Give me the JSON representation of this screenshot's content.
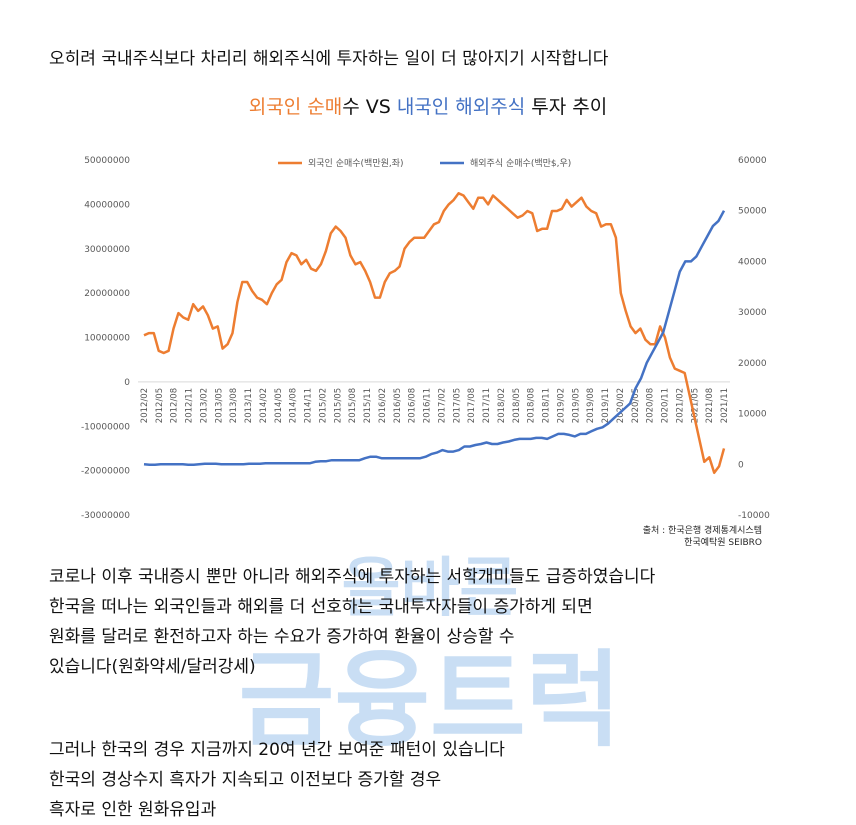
{
  "intro": "오히려 국내주식보다 차리리 해외주식에 투자하는 일이 더 많아지기 시작합니다",
  "title": {
    "part1": "외국인 순매",
    "part2": "수 VS ",
    "part3": "내국인 해외주식",
    "part4": " 투자 추이",
    "color_orange": "#ed7d31",
    "color_blue": "#4472c4"
  },
  "chart_data": {
    "type": "line",
    "legend": [
      "외국인 순매수(백만원,좌)",
      "해외주식 순매수(백만$,우)"
    ],
    "legend_position": "top-center",
    "grid": false,
    "left_axis": {
      "ticks": [
        "50000000",
        "40000000",
        "30000000",
        "20000000",
        "10000000",
        "0",
        "-10000000",
        "-20000000",
        "-30000000"
      ],
      "range": [
        -30000000,
        50000000
      ]
    },
    "right_axis": {
      "ticks": [
        "60000",
        "50000",
        "40000",
        "30000",
        "20000",
        "10000",
        "0",
        "-10000"
      ],
      "range": [
        -10000,
        60000
      ]
    },
    "x_labels": [
      "2012/02",
      "2012/05",
      "2012/08",
      "2012/11",
      "2013/02",
      "2013/05",
      "2013/08",
      "2013/11",
      "2014/02",
      "2014/05",
      "2014/08",
      "2014/11",
      "2015/02",
      "2015/05",
      "2015/08",
      "2015/11",
      "2016/02",
      "2016/05",
      "2016/08",
      "2016/11",
      "2017/02",
      "2017/05",
      "2017/08",
      "2017/11",
      "2018/02",
      "2018/05",
      "2018/08",
      "2018/11",
      "2019/02",
      "2019/05",
      "2019/08",
      "2019/11",
      "2020/02",
      "2020/05",
      "2020/08",
      "2020/11",
      "2021/02",
      "2021/05",
      "2021/08",
      "2021/11"
    ],
    "series": [
      {
        "name": "외국인 순매수(백만원,좌)",
        "color": "#ed7d31",
        "axis": "left",
        "values": [
          10500000,
          11000000,
          11000000,
          7000000,
          6500000,
          7000000,
          12000000,
          15500000,
          14500000,
          14000000,
          17500000,
          16000000,
          17000000,
          15000000,
          12000000,
          12500000,
          7500000,
          8500000,
          11000000,
          18000000,
          22500000,
          22500000,
          20500000,
          19000000,
          18500000,
          17500000,
          20000000,
          22000000,
          23000000,
          27000000,
          29000000,
          28500000,
          26500000,
          27500000,
          25500000,
          25000000,
          26500000,
          29500000,
          33500000,
          35000000,
          34000000,
          32500000,
          28500000,
          26500000,
          27000000,
          25000000,
          22500000,
          19000000,
          19000000,
          22500000,
          24500000,
          25000000,
          26000000,
          30000000,
          31500000,
          32500000,
          32500000,
          32500000,
          34000000,
          35500000,
          36000000,
          38500000,
          40000000,
          41000000,
          42500000,
          42000000,
          40500000,
          39000000,
          41500000,
          41500000,
          40000000,
          42000000,
          41000000,
          40000000,
          39000000,
          38000000,
          37000000,
          37500000,
          38500000,
          38000000,
          34000000,
          34500000,
          34500000,
          38500000,
          38500000,
          39000000,
          41000000,
          39500000,
          40500000,
          41500000,
          39500000,
          38500000,
          38000000,
          35000000,
          35500000,
          35500000,
          32500000,
          20000000,
          16000000,
          12500000,
          11000000,
          12000000,
          9500000,
          8500000,
          8500000,
          12500000,
          10000000,
          5500000,
          3000000,
          2500000,
          2000000,
          -3000000,
          -8000000,
          -13000000,
          -18000000,
          -17000000,
          -20500000,
          -19000000,
          -15000000
        ]
      },
      {
        "name": "해외주식 순매수(백만$,우)",
        "color": "#4472c4",
        "axis": "right",
        "values": [
          0,
          -100,
          -100,
          0,
          0,
          0,
          0,
          0,
          -100,
          -100,
          0,
          100,
          100,
          100,
          0,
          0,
          0,
          0,
          0,
          100,
          100,
          100,
          200,
          200,
          200,
          200,
          200,
          200,
          200,
          200,
          200,
          500,
          600,
          600,
          800,
          800,
          800,
          800,
          800,
          800,
          1200,
          1500,
          1500,
          1200,
          1200,
          1200,
          1200,
          1200,
          1200,
          1200,
          1200,
          1500,
          2000,
          2300,
          2800,
          2500,
          2500,
          2800,
          3500,
          3500,
          3800,
          4000,
          4300,
          4000,
          4000,
          4300,
          4500,
          4800,
          5000,
          5000,
          5000,
          5200,
          5200,
          5000,
          5500,
          6000,
          6000,
          5800,
          5500,
          6000,
          6000,
          6500,
          7000,
          7300,
          8000,
          9000,
          10000,
          11000,
          12000,
          15000,
          17000,
          20000,
          22000,
          24000,
          26000,
          30000,
          34000,
          38000,
          40000,
          40000,
          41000,
          43000,
          45000,
          47000,
          48000,
          50000
        ]
      }
    ],
    "source_lines": [
      "출처 : 한국은행 경제통계시스템",
      "한국예탁원 SEIBRO"
    ]
  },
  "body1": [
    "코로나 이후 국내증시 뿐만 아니라 해외주식에 투자하는 서학개미들도 급증하였습니다",
    "한국을 떠나는 외국인들과 해외를 더 선호하는 국내투자자들이 증가하게 되면",
    "원화를 달러로 환전하고자 하는 수요가 증가하여 환율이 상승할 수",
    "있습니다(원화약세/달러강세)"
  ],
  "body2": [
    "그러나 한국의 경우 지금까지 20여 년간 보여준 패턴이 있습니다",
    "한국의 경상수지 흑자가 지속되고 이전보다 증가할 경우",
    "흑자로 인한 원화유입과"
  ],
  "watermark": {
    "line1": "올바른",
    "line2": "금융트럭",
    "color": "#9ec4ec"
  }
}
